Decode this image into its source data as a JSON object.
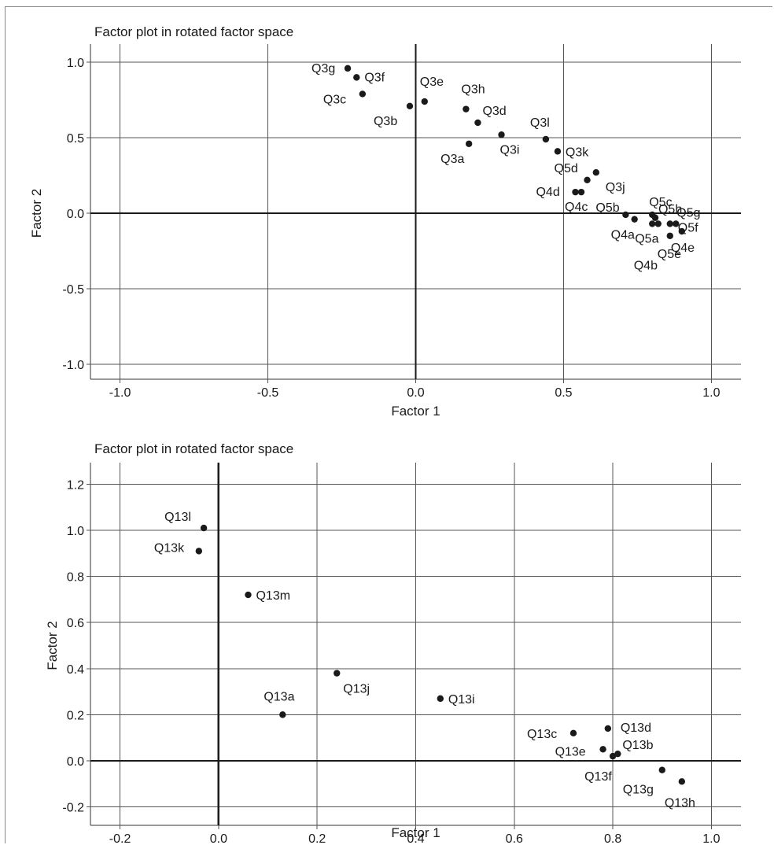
{
  "chart_data": [
    {
      "type": "scatter",
      "title": "Factor plot in rotated factor space",
      "xlabel": "Factor 1",
      "ylabel": "Factor 2",
      "xlim": [
        -1.1,
        1.1
      ],
      "ylim": [
        -1.1,
        1.1
      ],
      "xticks": [
        -1.0,
        -0.5,
        0.0,
        0.5,
        1.0
      ],
      "yticks": [
        -1.0,
        -0.5,
        0.0,
        0.5,
        1.0
      ],
      "grid": true,
      "points": [
        {
          "label": "Q3g",
          "x": -0.23,
          "y": 0.96
        },
        {
          "label": "Q3f",
          "x": -0.2,
          "y": 0.9
        },
        {
          "label": "Q3c",
          "x": -0.18,
          "y": 0.79
        },
        {
          "label": "Q3b",
          "x": -0.02,
          "y": 0.71
        },
        {
          "label": "Q3e",
          "x": 0.03,
          "y": 0.74
        },
        {
          "label": "Q3h",
          "x": 0.17,
          "y": 0.69
        },
        {
          "label": "Q3d",
          "x": 0.21,
          "y": 0.6
        },
        {
          "label": "Q3a",
          "x": 0.18,
          "y": 0.46
        },
        {
          "label": "Q3i",
          "x": 0.29,
          "y": 0.52
        },
        {
          "label": "Q3l",
          "x": 0.44,
          "y": 0.49
        },
        {
          "label": "Q3k",
          "x": 0.48,
          "y": 0.41
        },
        {
          "label": "Q3j",
          "x": 0.61,
          "y": 0.27
        },
        {
          "label": "Q5d",
          "x": 0.58,
          "y": 0.22
        },
        {
          "label": "Q4d",
          "x": 0.54,
          "y": 0.14
        },
        {
          "label": "Q4c",
          "x": 0.56,
          "y": 0.14
        },
        {
          "label": "Q5b",
          "x": 0.71,
          "y": -0.01
        },
        {
          "label": "Q5c",
          "x": 0.8,
          "y": -0.01
        },
        {
          "label": "Q5h",
          "x": 0.81,
          "y": -0.03
        },
        {
          "label": "Q5g",
          "x": 0.88,
          "y": -0.07
        },
        {
          "label": "Q4a",
          "x": 0.74,
          "y": -0.04
        },
        {
          "label": "Q5a",
          "x": 0.8,
          "y": -0.07
        },
        {
          "label": "Q4b",
          "x": 0.82,
          "y": -0.07
        },
        {
          "label": "Q5f",
          "x": 0.86,
          "y": -0.07
        },
        {
          "label": "Q5e",
          "x": 0.86,
          "y": -0.15
        },
        {
          "label": "Q4e",
          "x": 0.9,
          "y": -0.12
        }
      ]
    },
    {
      "type": "scatter",
      "title": "Factor plot in rotated factor space",
      "xlabel": "Factor 1",
      "ylabel": "Factor 2",
      "xlim": [
        -0.26,
        1.06
      ],
      "ylim": [
        -0.28,
        1.28
      ],
      "xticks": [
        -0.2,
        0.0,
        0.2,
        0.4,
        0.6,
        0.8,
        1.0
      ],
      "yticks": [
        -0.2,
        0.0,
        0.2,
        0.4,
        0.6,
        0.8,
        1.0,
        1.2
      ],
      "grid": true,
      "points": [
        {
          "label": "Q13l",
          "x": -0.03,
          "y": 1.01
        },
        {
          "label": "Q13k",
          "x": -0.04,
          "y": 0.91
        },
        {
          "label": "Q13m",
          "x": 0.06,
          "y": 0.72
        },
        {
          "label": "Q13j",
          "x": 0.24,
          "y": 0.38
        },
        {
          "label": "Q13a",
          "x": 0.13,
          "y": 0.2
        },
        {
          "label": "Q13i",
          "x": 0.45,
          "y": 0.27
        },
        {
          "label": "Q13c",
          "x": 0.72,
          "y": 0.12
        },
        {
          "label": "Q13d",
          "x": 0.79,
          "y": 0.14
        },
        {
          "label": "Q13e",
          "x": 0.78,
          "y": 0.05
        },
        {
          "label": "Q13b",
          "x": 0.81,
          "y": 0.03
        },
        {
          "label": "Q13f",
          "x": 0.8,
          "y": 0.02
        },
        {
          "label": "Q13g",
          "x": 0.9,
          "y": -0.04
        },
        {
          "label": "Q13h",
          "x": 0.94,
          "y": -0.09
        }
      ]
    }
  ]
}
